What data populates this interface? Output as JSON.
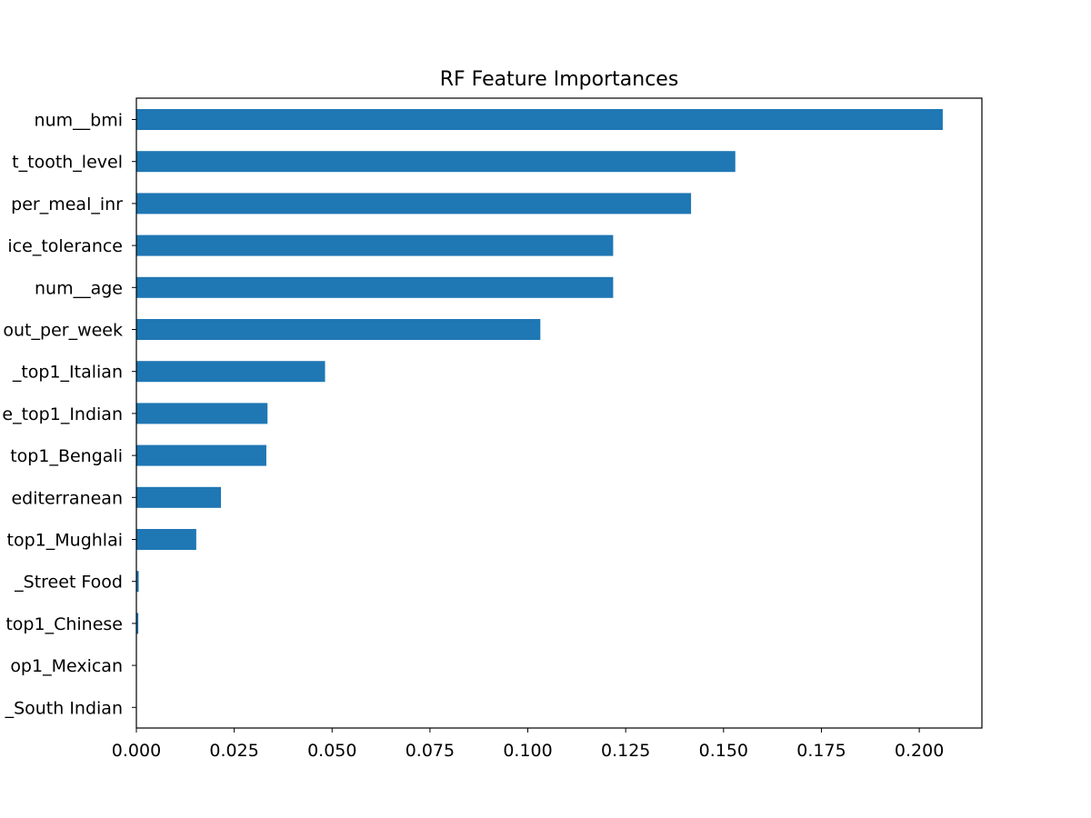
{
  "chart_data": {
    "type": "bar",
    "orientation": "horizontal",
    "title": "RF Feature Importances",
    "xlabel": "",
    "ylabel": "",
    "xlim": [
      0.0,
      0.216
    ],
    "xticks": [
      "0.000",
      "0.025",
      "0.050",
      "0.075",
      "0.100",
      "0.125",
      "0.150",
      "0.175",
      "0.200"
    ],
    "categories": [
      "num__bmi",
      "t_tooth_level",
      "per_meal_inr",
      "ice_tolerance",
      "num__age",
      "out_per_week",
      "_top1_Italian",
      "e_top1_Indian",
      "top1_Bengali",
      "editerranean",
      "top1_Mughlai",
      "_Street Food",
      "top1_Chinese",
      "op1_Mexican",
      "_South Indian"
    ],
    "values": [
      0.206,
      0.153,
      0.1417,
      0.1218,
      0.1218,
      0.1032,
      0.0482,
      0.0335,
      0.0332,
      0.0216,
      0.0153,
      0.0006,
      0.0005,
      0.0001,
      0.0001
    ],
    "color": "#1f77b4",
    "grid": false,
    "legend": "none"
  }
}
